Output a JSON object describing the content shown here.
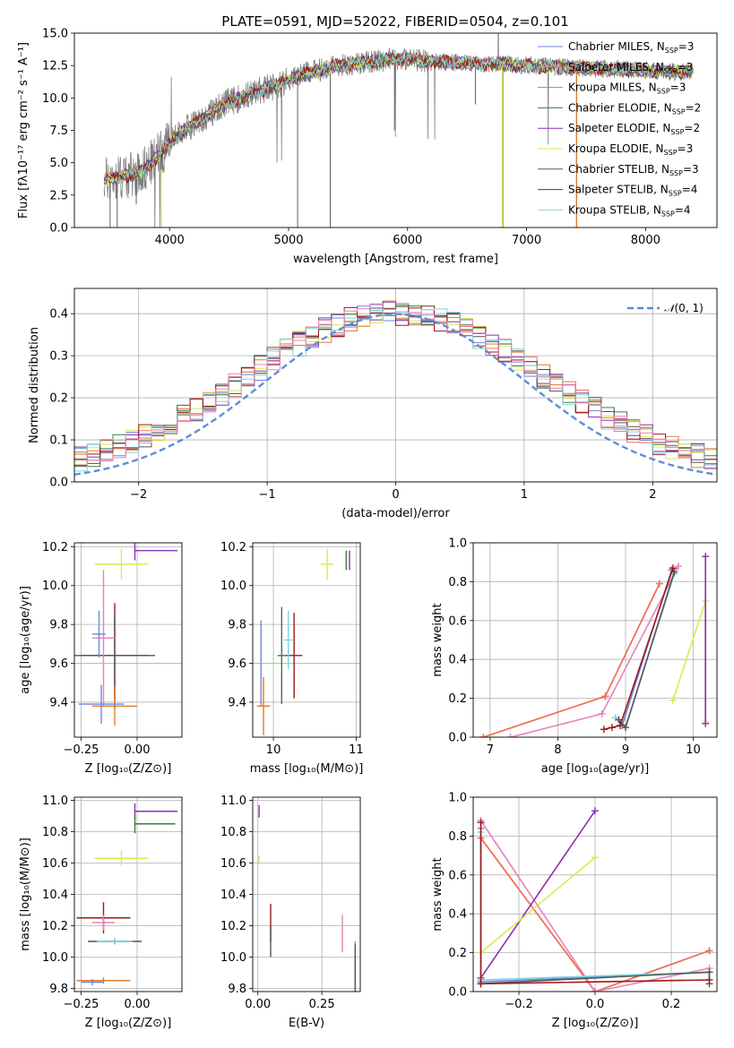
{
  "figure_title": "PLATE=0591, MJD=52022, FIBERID=0504, z=0.101",
  "palette": {
    "Chabrier MILES": "#6f86e0",
    "Salpeter MILES": "#f0705a",
    "Kroupa MILES": "#e07b2a",
    "Chabrier ELODIE": "#3f7a3f",
    "Salpeter ELODIE": "#8a2fb0",
    "Kroupa ELODIE": "#d8ea50",
    "Chabrier STELIB": "#555555",
    "Salpeter STELIB": "#a01818",
    "Kroupa STELIB": "#7fd6dc",
    "Pink": "#e882b8",
    "Grid": "#b0b0b0",
    "Gauss": "#5b8ed8"
  },
  "chart_data": [
    {
      "id": "spectrum",
      "type": "line",
      "xlabel": "wavelength [Angstrom, rest frame]",
      "ylabel": "Flux [fλ10⁻¹⁷ erg cm⁻² s⁻¹ A⁻¹]",
      "xlim": [
        3200,
        8600
      ],
      "ylim": [
        0,
        15
      ],
      "xticks": [
        "4000",
        "5000",
        "6000",
        "7000",
        "8000"
      ],
      "yticks": [
        "0.0",
        "2.5",
        "5.0",
        "7.5",
        "10.0",
        "12.5",
        "15.0"
      ],
      "grid": false,
      "legend_position": "right",
      "legend": [
        {
          "name": "Chabrier MILES, N",
          "sub": "SSP",
          "suffix": "=3"
        },
        {
          "name": "Salpeter MILES, N",
          "sub": "SSP",
          "suffix": "=3"
        },
        {
          "name": "Kroupa MILES, N",
          "sub": "SSP",
          "suffix": "=3"
        },
        {
          "name": "Chabrier ELODIE, N",
          "sub": "SSP",
          "suffix": "=2"
        },
        {
          "name": "Salpeter ELODIE, N",
          "sub": "SSP",
          "suffix": "=2"
        },
        {
          "name": "Kroupa ELODIE, N",
          "sub": "SSP",
          "suffix": "=3"
        },
        {
          "name": "Chabrier STELIB, N",
          "sub": "SSP",
          "suffix": "=3"
        },
        {
          "name": "Salpeter STELIB, N",
          "sub": "SSP",
          "suffix": "=4"
        },
        {
          "name": "Kroupa STELIB, N",
          "sub": "SSP",
          "suffix": "=4"
        }
      ],
      "envelope": {
        "wavelength": [
          3450,
          3600,
          3700,
          3800,
          3900,
          4000,
          4100,
          4200,
          4300,
          4400,
          4500,
          4600,
          4700,
          4800,
          4900,
          5000,
          5100,
          5200,
          5300,
          5400,
          5500,
          5600,
          5700,
          5800,
          5900,
          6000,
          6100,
          6200,
          6300,
          6400,
          6500,
          6600,
          6700,
          6800,
          6900,
          7000,
          7100,
          7200,
          7300,
          7400,
          7500,
          7600,
          7700,
          7800,
          7900,
          8000,
          8100,
          8200,
          8300,
          8400
        ],
        "flux": [
          3.7,
          3.9,
          4.1,
          4.6,
          5.5,
          6.5,
          7.4,
          8.0,
          8.5,
          9.2,
          9.7,
          10.0,
          10.4,
          10.7,
          11.0,
          11.4,
          11.8,
          12.0,
          12.3,
          12.5,
          12.6,
          12.7,
          12.8,
          12.9,
          13.0,
          13.0,
          12.9,
          12.8,
          12.8,
          12.7,
          12.7,
          12.6,
          12.6,
          12.6,
          12.5,
          12.5,
          12.4,
          12.4,
          12.4,
          12.3,
          12.3,
          12.3,
          12.2,
          12.2,
          12.2,
          12.1,
          12.1,
          12.0,
          12.0,
          12.0
        ]
      }
    },
    {
      "id": "residuals",
      "type": "histogram",
      "xlabel": "(data-model)/error",
      "ylabel": "Normed distribution",
      "xlim": [
        -2.5,
        2.5
      ],
      "ylim": [
        0,
        0.46
      ],
      "xticks": [
        "−2",
        "−1",
        "0",
        "1",
        "2"
      ],
      "yticks": [
        "0.0",
        "0.1",
        "0.2",
        "0.3",
        "0.4"
      ],
      "grid": true,
      "legend_position": "top-right",
      "legend_prefix": "𝒩",
      "legend_suffix": "(0, 1)",
      "bin_width": 0.1
    },
    {
      "id": "age-vs-Z",
      "type": "errorbar",
      "xlabel": "Z [log₁₀(Z/Z⊙)]",
      "ylabel": "age  [log₁₀(age/yr)]",
      "xlim": [
        -0.28,
        0.2
      ],
      "ylim": [
        9.22,
        10.22
      ],
      "xticks": [
        "−0.25",
        "0.00"
      ],
      "yticks": [
        "9.4",
        "9.6",
        "9.8",
        "10.0",
        "10.2"
      ],
      "grid": true,
      "points": [
        {
          "series": "Kroupa ELODIE",
          "x": -0.07,
          "y": 10.11,
          "xerr": 0.12,
          "yerr": 0.08
        },
        {
          "series": "Salpeter ELODIE",
          "x": -0.01,
          "y": 10.18,
          "xerr": 0.0,
          "yerr": 0.05,
          "xright": 0.18
        },
        {
          "series": "Salpeter STELIB",
          "x": -0.1,
          "y": 9.64,
          "xerr": 0.15,
          "yerr": 0.27
        },
        {
          "series": "Chabrier STELIB",
          "x": -0.1,
          "y": 9.64,
          "xerr": 0.18,
          "yerr": 0.22
        },
        {
          "series": "Pink",
          "x": -0.15,
          "y": 9.73,
          "xerr": 0.05,
          "yerr": 0.35
        },
        {
          "series": "Chabrier MILES",
          "x": -0.17,
          "y": 9.75,
          "xerr": 0.03,
          "yerr": 0.12
        },
        {
          "series": "Kroupa MILES",
          "x": -0.1,
          "y": 9.38,
          "xerr": 0.1,
          "yerr": 0.1
        },
        {
          "series": "Chabrier MILES",
          "x": -0.16,
          "y": 9.39,
          "xerr": 0.1,
          "yerr": 0.1
        }
      ]
    },
    {
      "id": "age-vs-mass",
      "type": "errorbar",
      "xlabel": "mass [log₁₀(M/M⊙)]",
      "ylabel": "",
      "xlim": [
        9.75,
        11.05
      ],
      "ylim": [
        9.22,
        10.22
      ],
      "xticks": [
        "10",
        "11"
      ],
      "yticks": [
        "9.4",
        "9.6",
        "9.8",
        "10.0",
        "10.2"
      ],
      "grid": true,
      "points": [
        {
          "series": "Kroupa ELODIE",
          "x": 10.65,
          "y": 10.11,
          "xerr": 0.08,
          "yerr": 0.08
        },
        {
          "series": "Chabrier ELODIE",
          "x": 10.88,
          "y": 10.13,
          "xerr": 0.0,
          "yerr": 0.05
        },
        {
          "series": "Salpeter ELODIE",
          "x": 10.92,
          "y": 10.13,
          "xerr": 0.0,
          "yerr": 0.05
        },
        {
          "series": "Salpeter STELIB",
          "x": 10.25,
          "y": 9.64,
          "xerr": 0.1,
          "yerr": 0.22
        },
        {
          "series": "Chabrier ELODIE",
          "x": 10.1,
          "y": 9.64,
          "xerr": 0.05,
          "yerr": 0.25
        },
        {
          "series": "Kroupa STELIB",
          "x": 10.18,
          "y": 9.72,
          "xerr": 0.05,
          "yerr": 0.15
        },
        {
          "series": "Chabrier MILES",
          "x": 9.85,
          "y": 9.6,
          "xerr": 0.0,
          "yerr": 0.22
        },
        {
          "series": "Kroupa MILES",
          "x": 9.88,
          "y": 9.38,
          "xerr": 0.08,
          "yerr": 0.15
        }
      ]
    },
    {
      "id": "weight-vs-age",
      "type": "line",
      "xlabel": "age  [log₁₀(age/yr)]",
      "ylabel": "mass weight",
      "xlim": [
        6.75,
        10.35
      ],
      "ylim": [
        0,
        1.0
      ],
      "xticks": [
        "7",
        "8",
        "9",
        "10"
      ],
      "yticks": [
        "0.0",
        "0.2",
        "0.4",
        "0.6",
        "0.8",
        "1.0"
      ],
      "grid": true,
      "lines": [
        {
          "series": "Kroupa MILES",
          "x": [
            6.9,
            8.7,
            9.5
          ],
          "y": [
            0.0,
            0.21,
            0.79
          ]
        },
        {
          "series": "Salpeter MILES",
          "x": [
            6.9,
            8.7,
            9.5
          ],
          "y": [
            0.0,
            0.21,
            0.79
          ]
        },
        {
          "series": "Pink",
          "x": [
            7.3,
            8.65,
            9.78
          ],
          "y": [
            0.0,
            0.12,
            0.88
          ]
        },
        {
          "series": "Chabrier MILES",
          "x": [
            8.85,
            8.95,
            9.68
          ],
          "y": [
            0.1,
            0.06,
            0.86
          ]
        },
        {
          "series": "Kroupa STELIB",
          "x": [
            8.85,
            9.0,
            9.72
          ],
          "y": [
            0.1,
            0.05,
            0.84
          ]
        },
        {
          "series": "Chabrier STELIB",
          "x": [
            8.9,
            9.0,
            9.72
          ],
          "y": [
            0.09,
            0.05,
            0.85
          ]
        },
        {
          "series": "Salpeter STELIB",
          "x": [
            8.68,
            8.8,
            8.92,
            9.7
          ],
          "y": [
            0.04,
            0.05,
            0.06,
            0.87
          ]
        },
        {
          "series": "Kroupa ELODIE",
          "x": [
            9.7,
            10.18,
            10.18
          ],
          "y": [
            0.19,
            0.7,
            0.08
          ]
        },
        {
          "series": "Salpeter ELODIE",
          "x": [
            10.18,
            10.18
          ],
          "y": [
            0.93,
            0.07
          ]
        }
      ]
    },
    {
      "id": "mass-vs-Z",
      "type": "errorbar",
      "xlabel": "Z [log₁₀(Z/Z⊙)]",
      "ylabel": "mass [log₁₀(M/M⊙)]",
      "xlim": [
        -0.28,
        0.2
      ],
      "ylim": [
        9.78,
        11.02
      ],
      "xticks": [
        "−0.25",
        "0.00"
      ],
      "yticks": [
        "9.8",
        "10.0",
        "10.2",
        "10.4",
        "10.6",
        "10.8",
        "11.0"
      ],
      "grid": true,
      "points": [
        {
          "series": "Salpeter ELODIE",
          "x": -0.01,
          "y": 10.93,
          "xerr": 0.0,
          "yerr": 0.05,
          "xright": 0.18
        },
        {
          "series": "Chabrier ELODIE",
          "x": -0.01,
          "y": 10.85,
          "xerr": 0.0,
          "yerr": 0.06,
          "xright": 0.17
        },
        {
          "series": "Kroupa ELODIE",
          "x": -0.07,
          "y": 10.63,
          "xerr": 0.12,
          "yerr": 0.05
        },
        {
          "series": "Salpeter STELIB",
          "x": -0.15,
          "y": 10.25,
          "xerr": 0.12,
          "yerr": 0.1
        },
        {
          "series": "Pink",
          "x": -0.15,
          "y": 10.22,
          "xerr": 0.05,
          "yerr": 0.05
        },
        {
          "series": "Chabrier STELIB",
          "x": -0.1,
          "y": 10.1,
          "xerr": 0.12,
          "yerr": 0.02
        },
        {
          "series": "Kroupa STELIB",
          "x": -0.1,
          "y": 10.1,
          "xerr": 0.08,
          "yerr": 0.02
        },
        {
          "series": "Kroupa MILES",
          "x": -0.15,
          "y": 9.85,
          "xerr": 0.12,
          "yerr": 0.02
        },
        {
          "series": "Chabrier MILES",
          "x": -0.2,
          "y": 9.84,
          "xerr": 0.05,
          "yerr": 0.02
        }
      ]
    },
    {
      "id": "mass-vs-EBV",
      "type": "errorbar",
      "xlabel": "E(B-V)",
      "ylabel": "",
      "xlim": [
        -0.02,
        0.4
      ],
      "ylim": [
        9.78,
        11.02
      ],
      "xticks": [
        "0.00",
        "0.25"
      ],
      "yticks": [
        "9.8",
        "10.0",
        "10.2",
        "10.4",
        "10.6",
        "10.8",
        "11.0"
      ],
      "grid": true,
      "points": [
        {
          "series": "Salpeter ELODIE",
          "x": 0.005,
          "y": 10.93,
          "xerr": 0.0,
          "yerr": 0.04
        },
        {
          "series": "Kroupa ELODIE",
          "x": 0.005,
          "y": 10.62,
          "xerr": 0.0,
          "yerr": 0.03
        },
        {
          "series": "Salpeter STELIB",
          "x": 0.05,
          "y": 10.22,
          "xerr": 0.0,
          "yerr": 0.12
        },
        {
          "series": "Chabrier STELIB",
          "x": 0.05,
          "y": 10.1,
          "xerr": 0.0,
          "yerr": 0.1
        },
        {
          "series": "Pink",
          "x": 0.33,
          "y": 10.15,
          "xerr": 0.0,
          "yerr": 0.12
        },
        {
          "series": "Kroupa MILES",
          "x": 0.38,
          "y": 9.95,
          "xerr": 0.0,
          "yerr": 0.15
        },
        {
          "series": "Chabrier STELIB",
          "x": 0.38,
          "y": 9.93,
          "xerr": 0.0,
          "yerr": 0.15
        }
      ]
    },
    {
      "id": "weight-vs-Z",
      "type": "line",
      "xlabel": "Z [log₁₀(Z/Z⊙)]",
      "ylabel": "mass weight",
      "xlim": [
        -0.32,
        0.32
      ],
      "ylim": [
        0,
        1.0
      ],
      "xticks": [
        "−0.2",
        "0.0",
        "0.2"
      ],
      "yticks": [
        "0.0",
        "0.2",
        "0.4",
        "0.6",
        "0.8",
        "1.0"
      ],
      "grid": true,
      "lines": [
        {
          "series": "Kroupa MILES",
          "x": [
            -0.3,
            0.0,
            0.3
          ],
          "y": [
            0.79,
            0.0,
            0.21
          ]
        },
        {
          "series": "Salpeter MILES",
          "x": [
            -0.3,
            0.0,
            0.3
          ],
          "y": [
            0.79,
            0.0,
            0.21
          ]
        },
        {
          "series": "Pink",
          "x": [
            -0.3,
            0.0,
            0.3
          ],
          "y": [
            0.88,
            0.0,
            0.12
          ]
        },
        {
          "series": "Salpeter ELODIE",
          "x": [
            -0.3,
            0.0
          ],
          "y": [
            0.07,
            0.93
          ]
        },
        {
          "series": "Kroupa ELODIE",
          "x": [
            -0.3,
            0.0
          ],
          "y": [
            0.2,
            0.69
          ]
        },
        {
          "series": "Chabrier MILES",
          "x": [
            -0.3,
            -0.3,
            0.3
          ],
          "y": [
            0.84,
            0.05,
            0.1
          ]
        },
        {
          "series": "Kroupa STELIB",
          "x": [
            -0.3,
            -0.3,
            0.3
          ],
          "y": [
            0.82,
            0.06,
            0.1
          ]
        },
        {
          "series": "Chabrier STELIB",
          "x": [
            -0.3,
            0.3,
            0.3
          ],
          "y": [
            0.04,
            0.1,
            0.04
          ]
        },
        {
          "series": "Salpeter STELIB",
          "x": [
            -0.3,
            -0.3,
            0.3
          ],
          "y": [
            0.87,
            0.04,
            0.06
          ]
        }
      ]
    }
  ]
}
